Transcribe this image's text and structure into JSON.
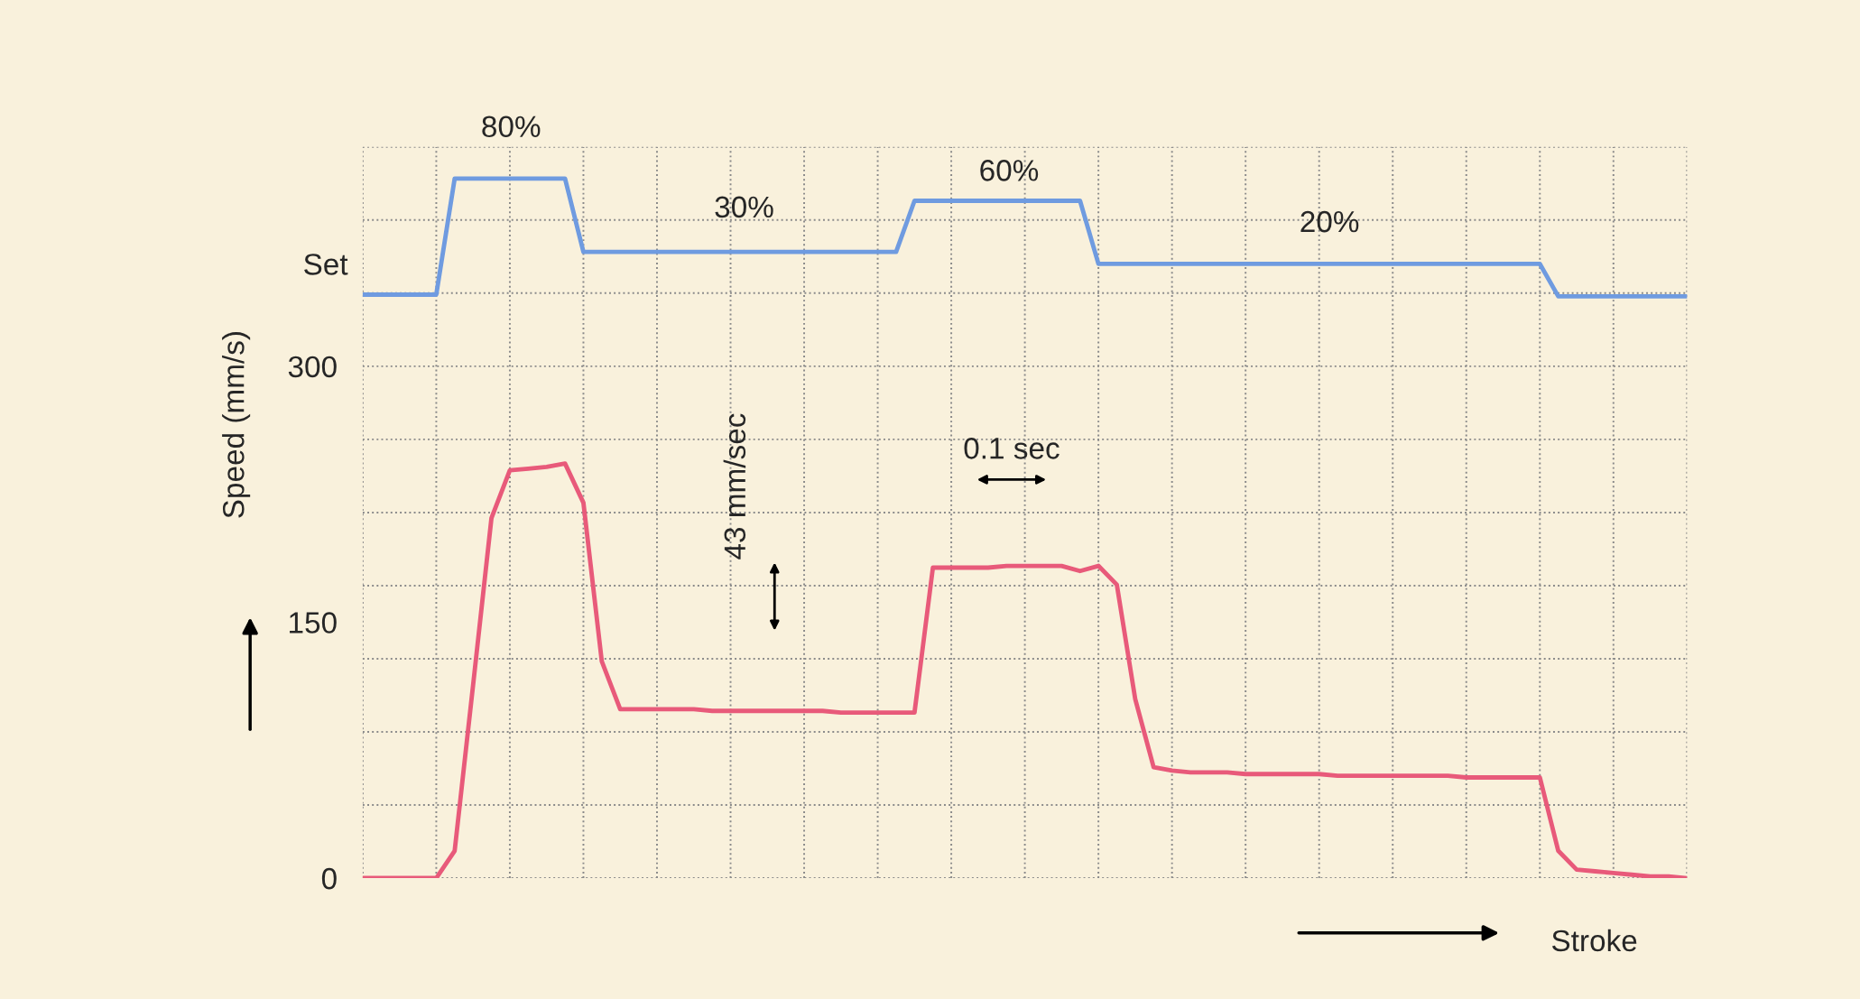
{
  "chart_data": {
    "type": "line",
    "ylabel": "Speed (mm/s)",
    "xlabel": "Stroke",
    "categories": [
      null,
      null,
      null,
      null,
      null,
      null,
      null,
      null,
      null,
      null,
      null,
      null,
      null,
      null,
      null,
      null,
      null,
      null,
      null,
      null,
      null,
      null,
      null,
      null,
      null,
      null,
      null,
      null,
      null,
      null,
      null,
      null,
      null,
      null,
      null,
      null,
      null,
      null,
      null,
      null,
      null,
      null,
      null,
      null,
      null,
      null,
      null,
      null,
      null,
      null,
      null,
      null,
      null,
      null,
      null,
      null,
      null,
      null,
      null,
      null,
      null,
      null,
      null,
      null,
      null,
      null,
      null,
      null,
      null,
      null,
      null,
      null,
      null
    ],
    "ylim": [
      0,
      428.6
    ],
    "yticks": [
      0,
      150,
      300
    ],
    "series": [
      {
        "name": "Set",
        "color": "#6f9be0",
        "values": [
          342,
          342,
          342,
          342,
          342,
          410,
          410,
          410,
          410,
          410,
          410,
          410,
          367,
          367,
          367,
          367,
          367,
          367,
          367,
          367,
          367,
          367,
          367,
          367,
          367,
          367,
          367,
          367,
          367,
          367,
          397,
          397,
          397,
          397,
          397,
          397,
          397,
          397,
          397,
          397,
          360,
          360,
          360,
          360,
          360,
          360,
          360,
          360,
          360,
          360,
          360,
          360,
          360,
          360,
          360,
          360,
          360,
          360,
          360,
          360,
          360,
          360,
          360,
          360,
          360,
          341,
          341,
          341,
          341,
          341,
          341,
          341,
          341
        ]
      },
      {
        "color": "#e85a7a",
        "values": [
          0,
          0,
          0,
          0,
          0,
          16,
          113,
          211,
          239,
          240,
          241,
          243,
          220,
          127,
          99,
          99,
          99,
          99,
          99,
          98,
          98,
          98,
          98,
          98,
          98,
          98,
          97,
          97,
          97,
          97,
          97,
          182,
          182,
          182,
          182,
          183,
          183,
          183,
          183,
          180,
          183,
          172,
          105,
          65,
          63,
          62,
          62,
          62,
          61,
          61,
          61,
          61,
          61,
          60,
          60,
          60,
          60,
          60,
          60,
          60,
          59,
          59,
          59,
          59,
          59,
          16,
          5,
          4,
          3,
          2,
          1,
          1,
          0
        ]
      }
    ],
    "annotations": [
      "80%",
      "30%",
      "60%",
      "20%",
      "43 mm/sec",
      "0.1 sec"
    ],
    "grid": true,
    "legend": false,
    "marker": "none",
    "line_style": "solid",
    "tick_labels": "y"
  }
}
